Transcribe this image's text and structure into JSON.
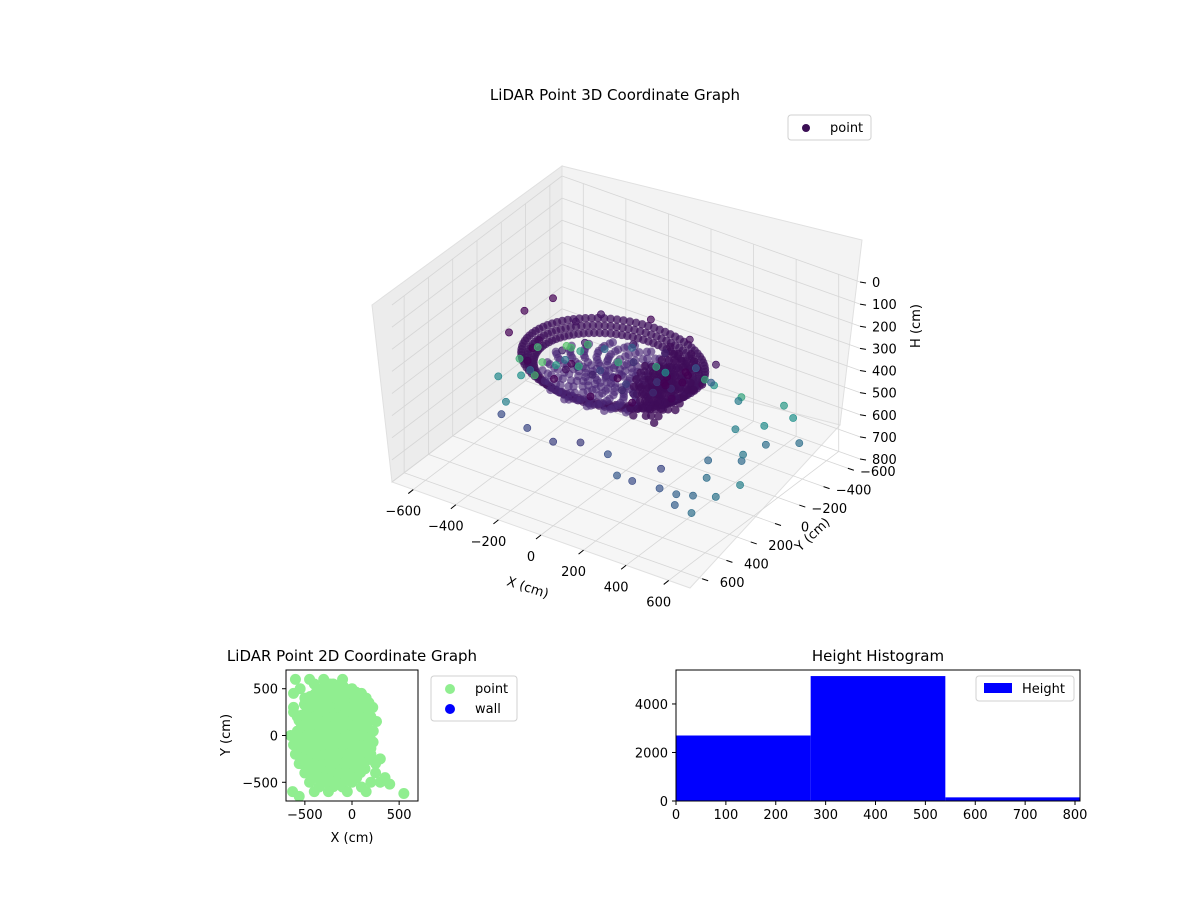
{
  "chart_data": [
    {
      "type": "scatter",
      "title": "LiDAR Point 3D Coordinate Graph",
      "xlabel": "X (cm)",
      "ylabel": "Y (cm)",
      "zlabel": "H (cm)",
      "xlim": [
        -700,
        700
      ],
      "ylim": [
        -700,
        700
      ],
      "zlim": [
        0,
        800
      ],
      "zaxis_inverted": true,
      "x_ticks": [
        "−600",
        "−400",
        "−200",
        "0",
        "200",
        "400",
        "600"
      ],
      "y_ticks": [
        "−600",
        "−400",
        "−200",
        "0",
        "200",
        "400",
        "600"
      ],
      "z_ticks": [
        "0",
        "100",
        "200",
        "300",
        "400",
        "500",
        "600",
        "700",
        "800"
      ],
      "grid": true,
      "legend": {
        "placement": "top-right",
        "entries": [
          {
            "label": "point",
            "color": "#3b0f55"
          }
        ]
      },
      "colormap": "viridis",
      "series": [
        {
          "name": "point",
          "points": [
            [
              -250,
              -100,
              350
            ],
            [
              -200,
              50,
              380
            ],
            [
              -150,
              -50,
              420
            ],
            [
              -100,
              100,
              360
            ],
            [
              -50,
              -150,
              390
            ],
            [
              0,
              0,
              410
            ],
            [
              50,
              120,
              370
            ],
            [
              100,
              -80,
              400
            ],
            [
              150,
              40,
              380
            ],
            [
              -300,
              0,
              360
            ],
            [
              -80,
              -200,
              340
            ],
            [
              120,
              150,
              350
            ],
            [
              200,
              -20,
              370
            ],
            [
              -180,
              180,
              330
            ],
            [
              40,
              -250,
              360
            ],
            [
              -350,
              -200,
              330
            ],
            [
              -380,
              50,
              320
            ],
            [
              -320,
              250,
              310
            ],
            [
              -150,
              330,
              300
            ],
            [
              50,
              380,
              290
            ],
            [
              200,
              300,
              300
            ],
            [
              300,
              150,
              310
            ],
            [
              330,
              -50,
              320
            ],
            [
              280,
              -250,
              330
            ],
            [
              100,
              -350,
              320
            ],
            [
              -100,
              -380,
              310
            ],
            [
              -300,
              -320,
              330
            ],
            [
              -400,
              -100,
              200
            ],
            [
              -420,
              100,
              180
            ],
            [
              -350,
              350,
              150
            ],
            [
              -200,
              420,
              140
            ],
            [
              0,
              450,
              130
            ],
            [
              200,
              420,
              140
            ],
            [
              350,
              300,
              160
            ],
            [
              250,
              100,
              250
            ],
            [
              300,
              200,
              230
            ],
            [
              320,
              50,
              240
            ],
            [
              280,
              0,
              260
            ],
            [
              350,
              150,
              220
            ],
            [
              -450,
              -400,
              650
            ],
            [
              -500,
              -300,
              620
            ],
            [
              -550,
              -100,
              600
            ],
            [
              -600,
              0,
              580
            ],
            [
              -450,
              200,
              560
            ],
            [
              -500,
              -500,
              640
            ],
            [
              -350,
              -550,
              660
            ],
            [
              -600,
              -300,
              700
            ],
            [
              -650,
              -450,
              720
            ],
            [
              -700,
              -350,
              680
            ],
            [
              -600,
              -600,
              700
            ],
            [
              -550,
              -650,
              690
            ],
            [
              -200,
              -600,
              650
            ],
            [
              0,
              -650,
              660
            ],
            [
              200,
              -600,
              650
            ],
            [
              400,
              -600,
              620
            ],
            [
              500,
              -500,
              600
            ],
            [
              -100,
              -500,
              600
            ],
            [
              100,
              -550,
              610
            ],
            [
              -300,
              -350,
              500
            ],
            [
              -200,
              -400,
              480
            ],
            [
              100,
              -400,
              470
            ],
            [
              200,
              -350,
              480
            ],
            [
              -400,
              -200,
              520
            ],
            [
              -450,
              0,
              500
            ],
            [
              300,
              -400,
              550
            ],
            [
              400,
              -200,
              560
            ],
            [
              450,
              -350,
              590
            ],
            [
              500,
              200,
              500
            ],
            [
              550,
              300,
              520
            ],
            [
              600,
              100,
              510
            ],
            [
              650,
              400,
              530
            ],
            [
              600,
              -100,
              520
            ],
            [
              550,
              0,
              540
            ],
            [
              650,
              200,
              560
            ],
            [
              200,
              500,
              450
            ],
            [
              300,
              600,
              470
            ],
            [
              400,
              650,
              440
            ],
            [
              500,
              600,
              460
            ],
            [
              600,
              650,
              480
            ],
            [
              450,
              500,
              430
            ],
            [
              -150,
              550,
              430
            ],
            [
              0,
              600,
              420
            ],
            [
              -300,
              500,
              440
            ],
            [
              100,
              550,
              410
            ],
            [
              600,
              500,
              500
            ],
            [
              650,
              600,
              520
            ],
            [
              550,
              550,
              490
            ],
            [
              700,
              -200,
              520
            ],
            [
              -700,
              -500,
              690
            ],
            [
              -650,
              -650,
              730
            ]
          ]
        }
      ]
    },
    {
      "type": "scatter",
      "title": "LiDAR Point 2D Coordinate Graph",
      "xlabel": "X (cm)",
      "ylabel": "Y (cm)",
      "xlim": [
        -700,
        700
      ],
      "ylim": [
        -700,
        700
      ],
      "x_ticks": [
        "−500",
        "0",
        "500"
      ],
      "y_ticks": [
        "−500",
        "0",
        "500"
      ],
      "grid": false,
      "legend": {
        "placement": "outside-right",
        "entries": [
          {
            "label": "point",
            "color": "#90ee90"
          },
          {
            "label": "wall",
            "color": "#0000ff"
          }
        ]
      },
      "series": [
        {
          "name": "point",
          "color": "#90ee90",
          "points": [
            [
              -600,
              600
            ],
            [
              -550,
              500
            ],
            [
              -500,
              400
            ],
            [
              -450,
              600
            ],
            [
              -400,
              550
            ],
            [
              -350,
              500
            ],
            [
              -300,
              600
            ],
            [
              -250,
              450
            ],
            [
              -200,
              550
            ],
            [
              -150,
              500
            ],
            [
              -100,
              600
            ],
            [
              -50,
              450
            ],
            [
              0,
              500
            ],
            [
              50,
              400
            ],
            [
              100,
              450
            ],
            [
              -620,
              300
            ],
            [
              -580,
              200
            ],
            [
              -520,
              100
            ],
            [
              -480,
              0
            ],
            [
              -440,
              -100
            ],
            [
              -600,
              -200
            ],
            [
              -560,
              -300
            ],
            [
              -500,
              -400
            ],
            [
              -450,
              -500
            ],
            [
              -400,
              -600
            ],
            [
              -350,
              -550
            ],
            [
              -300,
              -450
            ],
            [
              -250,
              -600
            ],
            [
              -200,
              -500
            ],
            [
              -150,
              -400
            ],
            [
              -100,
              -550
            ],
            [
              -50,
              -600
            ],
            [
              0,
              -500
            ],
            [
              50,
              -450
            ],
            [
              100,
              -550
            ],
            [
              150,
              -600
            ],
            [
              200,
              -500
            ],
            [
              250,
              -400
            ],
            [
              300,
              -500
            ],
            [
              350,
              -450
            ],
            [
              400,
              -520
            ],
            [
              250,
              -300
            ],
            [
              200,
              -200
            ],
            [
              150,
              -100
            ],
            [
              100,
              0
            ],
            [
              150,
              100
            ],
            [
              200,
              200
            ],
            [
              220,
              300
            ],
            [
              180,
              350
            ],
            [
              100,
              300
            ],
            [
              50,
              200
            ],
            [
              0,
              100
            ],
            [
              -50,
              0
            ],
            [
              -100,
              -100
            ],
            [
              -150,
              -200
            ],
            [
              -200,
              -300
            ],
            [
              -250,
              -100
            ],
            [
              -300,
              0
            ],
            [
              -350,
              100
            ],
            [
              -400,
              200
            ],
            [
              -450,
              300
            ],
            [
              -300,
              300
            ],
            [
              -200,
              200
            ],
            [
              -100,
              200
            ],
            [
              0,
              300
            ],
            [
              -250,
              -200
            ],
            [
              -350,
              -300
            ],
            [
              -150,
              100
            ],
            [
              -100,
              350
            ],
            [
              50,
              -200
            ],
            [
              100,
              -300
            ],
            [
              0,
              -300
            ],
            [
              -400,
              -300
            ],
            [
              -500,
              -100
            ],
            [
              260,
              150
            ],
            [
              -620,
              -100
            ],
            [
              -620,
              450
            ],
            [
              550,
              -620
            ],
            [
              -630,
              -600
            ],
            [
              -560,
              -650
            ],
            [
              -650,
              0
            ],
            [
              -620,
              250
            ],
            [
              300,
              -250
            ],
            [
              150,
              400
            ]
          ]
        },
        {
          "name": "wall",
          "color": "#0000ff",
          "points": []
        }
      ]
    },
    {
      "type": "bar",
      "title": "Height Histogram",
      "xlim": [
        0,
        810
      ],
      "ylim": [
        0,
        5400
      ],
      "x_ticks": [
        "0",
        "100",
        "200",
        "300",
        "400",
        "500",
        "600",
        "700",
        "800"
      ],
      "y_ticks": [
        "0",
        "2000",
        "4000"
      ],
      "legend": {
        "placement": "top-right",
        "entries": [
          {
            "label": "Height",
            "color": "#0000ff"
          }
        ]
      },
      "bins": [
        {
          "start": 0,
          "end": 270,
          "count": 2700
        },
        {
          "start": 270,
          "end": 540,
          "count": 5150
        },
        {
          "start": 540,
          "end": 810,
          "count": 150
        }
      ]
    }
  ]
}
